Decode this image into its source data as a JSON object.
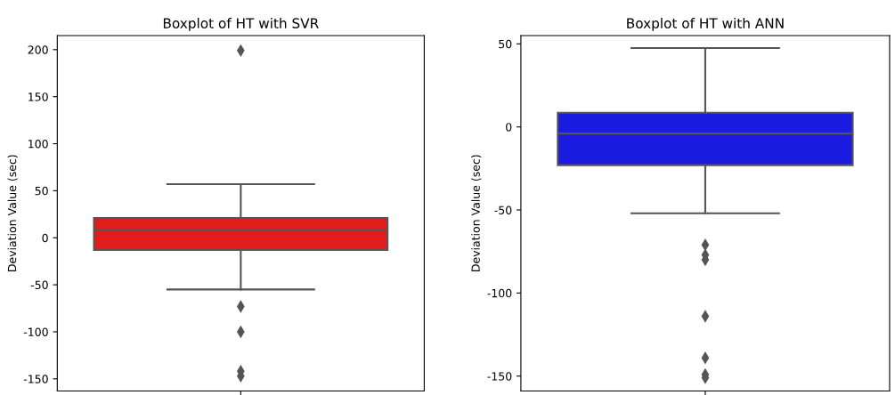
{
  "chart_data": [
    {
      "type": "box",
      "title": "Boxplot of HT with SVR",
      "ylabel": "Deviation Value (sec)",
      "categories": [
        null
      ],
      "tick_labels": "y",
      "ylim": [
        -163,
        215
      ],
      "yticks": [
        -150,
        -100,
        -50,
        0,
        50,
        100,
        150,
        200
      ],
      "series": [
        {
          "color": "#e01c1c",
          "boxes": [
            {
              "low": -55,
              "q1": -13,
              "median": 8,
              "q3": 21,
              "high": 57,
              "outliers": [
                199,
                -73,
                -100,
                -142,
                -147
              ]
            }
          ]
        }
      ]
    },
    {
      "type": "box",
      "title": "Boxplot of HT with ANN",
      "ylabel": "Deviation Value (sec)",
      "categories": [
        null
      ],
      "tick_labels": "y",
      "ylim": [
        -159,
        55
      ],
      "yticks": [
        -150,
        -100,
        -50,
        0,
        50
      ],
      "series": [
        {
          "color": "#1c1ce0",
          "boxes": [
            {
              "low": -52,
              "q1": -23,
              "median": -4,
              "q3": 8.5,
              "high": 47.5,
              "outliers": [
                -71,
                -77,
                -80,
                -114,
                -139,
                -149,
                -151
              ]
            }
          ]
        }
      ]
    }
  ]
}
